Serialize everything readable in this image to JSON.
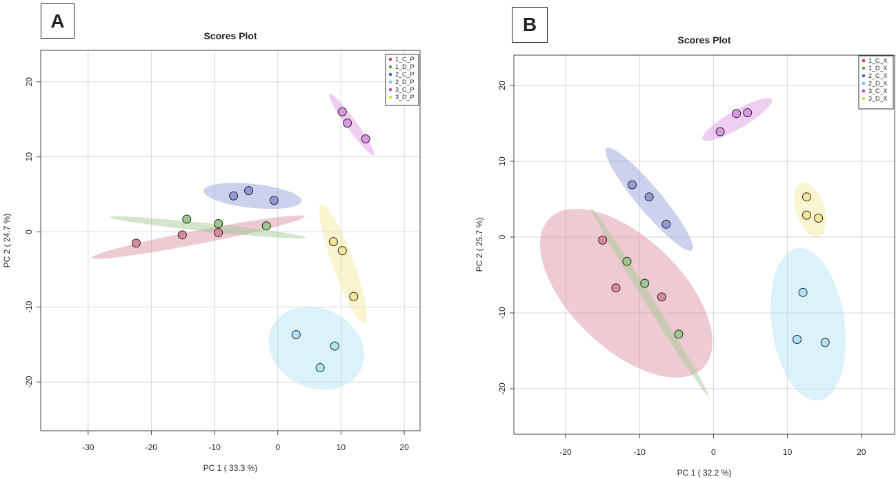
{
  "chart_data": [
    {
      "panel_label": "A",
      "type": "scatter",
      "title": "Scores Plot",
      "xlabel": "PC 1 ( 33.3 %)",
      "ylabel": "PC 2 ( 24.7 %)",
      "xlim": [
        -37.5,
        22.5
      ],
      "ylim": [
        -26.5,
        24.2
      ],
      "xticks": [
        -30,
        -20,
        -10,
        0,
        10,
        20
      ],
      "yticks": [
        -20,
        -10,
        0,
        10,
        20
      ],
      "grid": true,
      "legend_position": "top-right",
      "series": [
        {
          "name": "1_C_P",
          "color": "#e0345a",
          "fill": "#d98a9c",
          "points": [
            [
              -22.4,
              -1.5
            ],
            [
              -15.1,
              -0.4
            ],
            [
              -9.4,
              -0.1
            ]
          ],
          "ellipse": {
            "cx": -12.6,
            "cy": -0.7,
            "rx": 17.2,
            "ry": 0.9,
            "angle": 11
          }
        },
        {
          "name": "1_D_P",
          "color": "#4fa83a",
          "fill": "#9dc88e",
          "points": [
            [
              -14.4,
              1.7
            ],
            [
              -9.4,
              1.1
            ],
            [
              -1.8,
              0.8
            ]
          ],
          "ellipse": {
            "cx": -11.0,
            "cy": 0.6,
            "rx": 15.6,
            "ry": 0.55,
            "angle": -6
          }
        },
        {
          "name": "2_C_P",
          "color": "#4a5fd0",
          "fill": "#8f9bd6",
          "points": [
            [
              -7.0,
              4.8
            ],
            [
              -4.6,
              5.5
            ],
            [
              -0.6,
              4.2
            ]
          ],
          "ellipse": {
            "cx": -4.0,
            "cy": 4.8,
            "rx": 7.8,
            "ry": 1.6,
            "angle": -6
          }
        },
        {
          "name": "2_D_P",
          "color": "#65c7ea",
          "fill": "#b0e3f4",
          "points": [
            [
              2.9,
              -13.7
            ],
            [
              9.0,
              -15.2
            ],
            [
              6.7,
              -18.1
            ]
          ],
          "ellipse": {
            "cx": 6.1,
            "cy": -15.5,
            "rx": 7.8,
            "ry": 5.3,
            "angle": -25
          }
        },
        {
          "name": "3_C_P",
          "color": "#c83ed8",
          "fill": "#da95e3",
          "points": [
            [
              10.2,
              16.0
            ],
            [
              11.0,
              14.5
            ],
            [
              13.9,
              12.4
            ]
          ],
          "ellipse": {
            "cx": 11.7,
            "cy": 14.3,
            "rx": 6.0,
            "ry": 0.7,
            "angle": -54
          }
        },
        {
          "name": "3_D_P",
          "color": "#f2d22c",
          "fill": "#f4e79a",
          "points": [
            [
              8.8,
              -1.3
            ],
            [
              10.2,
              -2.5
            ],
            [
              12.0,
              -8.6
            ]
          ],
          "ellipse": {
            "cx": 10.3,
            "cy": -4.2,
            "rx": 10.0,
            "ry": 1.4,
            "angle": -70
          }
        }
      ]
    },
    {
      "panel_label": "B",
      "type": "scatter",
      "title": "Scores Plot",
      "xlabel": "PC 1 ( 32.2 %)",
      "ylabel": "PC 2 ( 25.7 %)",
      "xlim": [
        -27,
        24.5
      ],
      "ylim": [
        -26,
        24
      ],
      "xticks": [
        -20,
        -10,
        0,
        10,
        20
      ],
      "yticks": [
        -20,
        -10,
        0,
        10,
        20
      ],
      "grid": true,
      "legend_position": "top-right",
      "series": [
        {
          "name": "1_C_X",
          "color": "#e0345a",
          "fill": "#d98a9c",
          "points": [
            [
              -15.0,
              -0.4
            ],
            [
              -13.2,
              -6.7
            ],
            [
              -7.0,
              -7.9
            ]
          ],
          "ellipse": {
            "cx": -11.8,
            "cy": -7.4,
            "rx": 14.5,
            "ry": 7.3,
            "angle": -44
          }
        },
        {
          "name": "1_D_X",
          "color": "#4fa83a",
          "fill": "#9dc88e",
          "points": [
            [
              -11.7,
              -3.2
            ],
            [
              -9.3,
              -6.1
            ],
            [
              -4.7,
              -12.8
            ]
          ],
          "ellipse": {
            "cx": -8.6,
            "cy": -8.6,
            "rx": 15.0,
            "ry": 0.55,
            "angle": -58
          }
        },
        {
          "name": "2_C_X",
          "color": "#4a5fd0",
          "fill": "#8f9bd6",
          "points": [
            [
              -11.0,
              6.9
            ],
            [
              -8.7,
              5.3
            ],
            [
              -6.4,
              1.7
            ]
          ],
          "ellipse": {
            "cx": -8.7,
            "cy": 5.0,
            "rx": 9.0,
            "ry": 1.6,
            "angle": -50
          }
        },
        {
          "name": "2_D_X",
          "color": "#65c7ea",
          "fill": "#b0e3f4",
          "points": [
            [
              12.1,
              -7.3
            ],
            [
              11.3,
              -13.5
            ],
            [
              15.1,
              -13.9
            ]
          ],
          "ellipse": {
            "cx": 12.8,
            "cy": -11.5,
            "rx": 10.4,
            "ry": 4.8,
            "angle": -82
          }
        },
        {
          "name": "3_C_X",
          "color": "#c83ed8",
          "fill": "#da95e3",
          "points": [
            [
              0.9,
              13.9
            ],
            [
              3.1,
              16.3
            ],
            [
              4.6,
              16.4
            ]
          ],
          "ellipse": {
            "cx": 3.2,
            "cy": 15.5,
            "rx": 5.4,
            "ry": 1.2,
            "angle": 30
          }
        },
        {
          "name": "3_D_X",
          "color": "#f2d22c",
          "fill": "#f4e79a",
          "points": [
            [
              12.6,
              5.3
            ],
            [
              12.6,
              2.9
            ],
            [
              14.2,
              2.5
            ]
          ],
          "ellipse": {
            "cx": 13.1,
            "cy": 3.6,
            "rx": 3.8,
            "ry": 1.85,
            "angle": -72
          }
        }
      ]
    }
  ]
}
